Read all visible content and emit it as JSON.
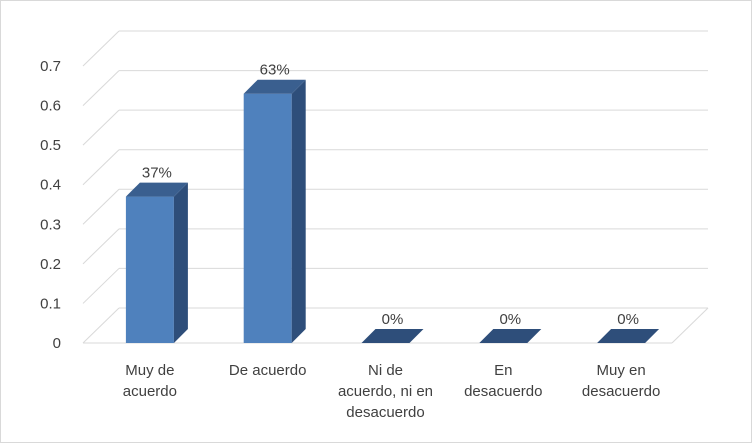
{
  "chart_data": {
    "type": "bar",
    "title": "",
    "xlabel": "",
    "ylabel": "",
    "categories": [
      [
        "Muy de",
        "acuerdo"
      ],
      [
        "De acuerdo"
      ],
      [
        "Ni de",
        "acuerdo, ni en",
        "desacuerdo"
      ],
      [
        "En",
        "desacuerdo"
      ],
      [
        "Muy en",
        "desacuerdo"
      ]
    ],
    "values": [
      0.37,
      0.63,
      0,
      0,
      0
    ],
    "data_labels": [
      "37%",
      "63%",
      "0%",
      "0%",
      "0%"
    ],
    "yticks": [
      "0",
      "0.1",
      "0.2",
      "0.3",
      "0.4",
      "0.5",
      "0.6",
      "0.7"
    ],
    "ylim": [
      0,
      0.7
    ],
    "grid": true,
    "style": "3d-column",
    "colors": {
      "bar_front": "#4f81bd",
      "bar_side": "#2e4e7a",
      "bar_top": "#3a5f8f",
      "grid": "#d9d9d9",
      "text": "#404040"
    }
  }
}
